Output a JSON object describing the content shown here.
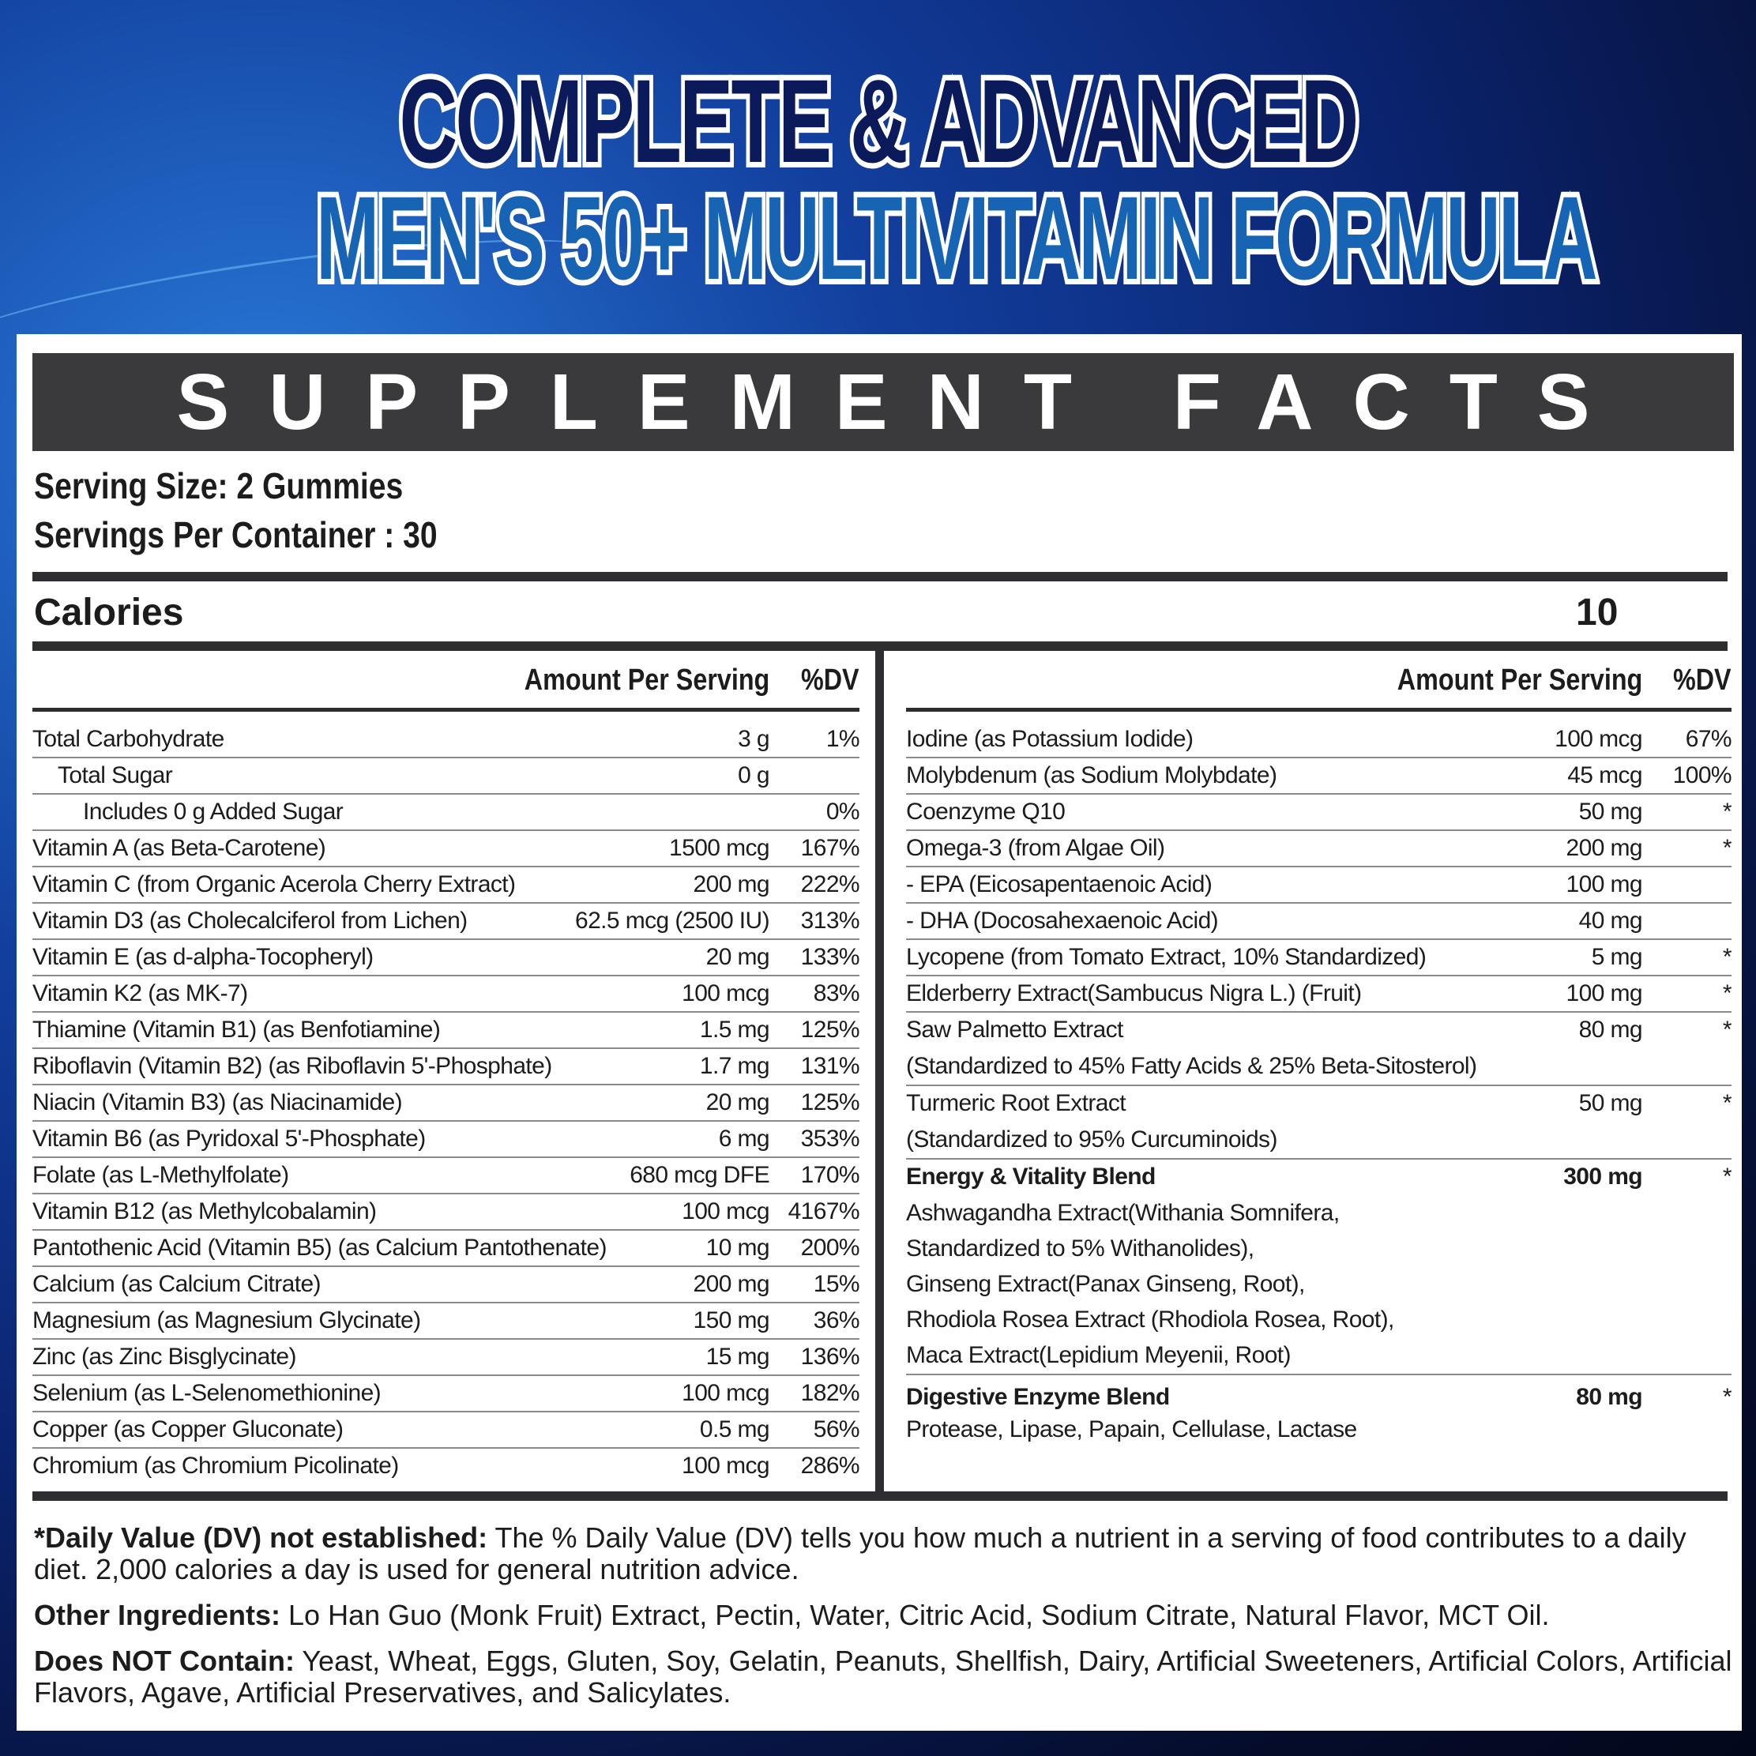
{
  "title": {
    "line1": "COMPLETE & ADVANCED",
    "line2": "MEN'S 50+ MULTIVITAMIN FORMULA"
  },
  "facts": {
    "heading": "SUPPLEMENT FACTS",
    "serving_size": "Serving Size: 2 Gummies",
    "servings_per_container": "Servings Per Container : 30",
    "calories_label": "Calories",
    "calories_value": "10",
    "amount_header": "Amount Per Serving",
    "dv_header": "%DV"
  },
  "left_rows": [
    {
      "name": "Total Carbohydrate",
      "amount": "3 g",
      "dv": "1%"
    },
    {
      "name": "Total Sugar",
      "amount": "0 g",
      "dv": "",
      "indent": 1
    },
    {
      "name": "Includes 0 g Added Sugar",
      "amount": "",
      "dv": "0%",
      "indent": 2
    },
    {
      "name": "Vitamin A (as Beta-Carotene)",
      "amount": "1500 mcg",
      "dv": "167%"
    },
    {
      "name": "Vitamin C (from Organic Acerola Cherry Extract)",
      "amount": "200 mg",
      "dv": "222%"
    },
    {
      "name": "Vitamin D3 (as Cholecalciferol from Lichen)",
      "amount": "62.5 mcg (2500 IU)",
      "dv": "313%"
    },
    {
      "name": "Vitamin E (as d-alpha-Tocopheryl)",
      "amount": "20 mg",
      "dv": "133%"
    },
    {
      "name": "Vitamin K2 (as MK-7)",
      "amount": "100 mcg",
      "dv": "83%"
    },
    {
      "name": "Thiamine (Vitamin B1) (as Benfotiamine)",
      "amount": "1.5 mg",
      "dv": "125%"
    },
    {
      "name": "Riboflavin (Vitamin B2) (as Riboflavin 5'-Phosphate)",
      "amount": "1.7 mg",
      "dv": "131%"
    },
    {
      "name": "Niacin (Vitamin B3) (as Niacinamide)",
      "amount": "20 mg",
      "dv": "125%"
    },
    {
      "name": "Vitamin B6 (as Pyridoxal 5'-Phosphate)",
      "amount": "6 mg",
      "dv": "353%"
    },
    {
      "name": "Folate (as L-Methylfolate)",
      "amount": "680 mcg DFE",
      "dv": "170%"
    },
    {
      "name": "Vitamin B12 (as Methylcobalamin)",
      "amount": "100 mcg",
      "dv": "4167%"
    },
    {
      "name": "Pantothenic Acid (Vitamin B5) (as Calcium Pantothenate)",
      "amount": "10 mg",
      "dv": "200%"
    },
    {
      "name": "Calcium (as Calcium Citrate)",
      "amount": "200 mg",
      "dv": "15%"
    },
    {
      "name": "Magnesium (as Magnesium Glycinate)",
      "amount": "150 mg",
      "dv": "36%"
    },
    {
      "name": "Zinc (as Zinc Bisglycinate)",
      "amount": "15 mg",
      "dv": "136%"
    },
    {
      "name": "Selenium (as L-Selenomethionine)",
      "amount": "100 mcg",
      "dv": "182%"
    },
    {
      "name": "Copper (as Copper Gluconate)",
      "amount": "0.5 mg",
      "dv": "56%"
    },
    {
      "name": "Chromium (as Chromium Picolinate)",
      "amount": "100 mcg",
      "dv": "286%"
    }
  ],
  "right_rows": [
    {
      "name": "Iodine (as Potassium Iodide)",
      "amount": "100 mcg",
      "dv": "67%"
    },
    {
      "name": "Molybdenum (as Sodium Molybdate)",
      "amount": "45 mcg",
      "dv": "100%"
    },
    {
      "name": "Coenzyme Q10",
      "amount": "50 mg",
      "dv": "*"
    },
    {
      "name": "Omega-3 (from Algae Oil)",
      "amount": "200 mg",
      "dv": "*"
    },
    {
      "name": "- EPA (Eicosapentaenoic Acid)",
      "amount": "100 mg",
      "dv": ""
    },
    {
      "name": "- DHA (Docosahexaenoic Acid)",
      "amount": "40 mg",
      "dv": ""
    },
    {
      "name": "Lycopene (from Tomato Extract, 10% Standardized)",
      "amount": "5 mg",
      "dv": "*"
    },
    {
      "name": "Elderberry Extract(Sambucus Nigra L.) (Fruit)",
      "amount": "100 mg",
      "dv": "*"
    },
    {
      "name": "Saw Palmetto Extract",
      "amount": "80 mg",
      "dv": "*",
      "sub": [
        "(Standardized to 45% Fatty Acids & 25% Beta-Sitosterol)"
      ]
    },
    {
      "name": "Turmeric Root Extract",
      "amount": "50 mg",
      "dv": "*",
      "sub": [
        "(Standardized to 95% Curcuminoids)"
      ]
    },
    {
      "name": "Energy & Vitality Blend",
      "amount": "300 mg",
      "dv": "*",
      "bold": true,
      "sub": [
        "Ashwagandha Extract(Withania Somnifera,",
        "Standardized to 5% Withanolides),",
        "Ginseng Extract(Panax Ginseng, Root),",
        "Rhodiola Rosea Extract (Rhodiola Rosea, Root),",
        "Maca Extract(Lepidium Meyenii, Root)"
      ]
    },
    {
      "name": "Digestive Enzyme Blend",
      "amount": "80 mg",
      "dv": "*",
      "bold": true,
      "sub": [
        "Protease, Lipase, Papain, Cellulase, Lactase"
      ]
    }
  ],
  "footer": {
    "dv_label": "*Daily Value (DV) not established:",
    "dv_text": " The % Daily Value (DV) tells you how much a nutrient in a serving of food contributes to a daily diet. 2,000 calories a day is used for general nutrition advice.",
    "other_label": "Other Ingredients:",
    "other_text": " Lo Han Guo (Monk Fruit) Extract, Pectin, Water, Citric Acid, Sodium Citrate, Natural Flavor, MCT Oil.",
    "not_label": "Does NOT Contain:",
    "not_text": " Yeast, Wheat, Eggs, Gluten, Soy, Gelatin, Peanuts, Shellfish, Dairy, Artificial Sweeteners, Artificial Colors, Artificial Flavors, Agave, Artificial Preservatives, and Salicylates."
  },
  "colors": {
    "title_dark": "#0b1a5a",
    "title_blue": "#1664b3",
    "heading_bar": "#3a3a3c"
  }
}
